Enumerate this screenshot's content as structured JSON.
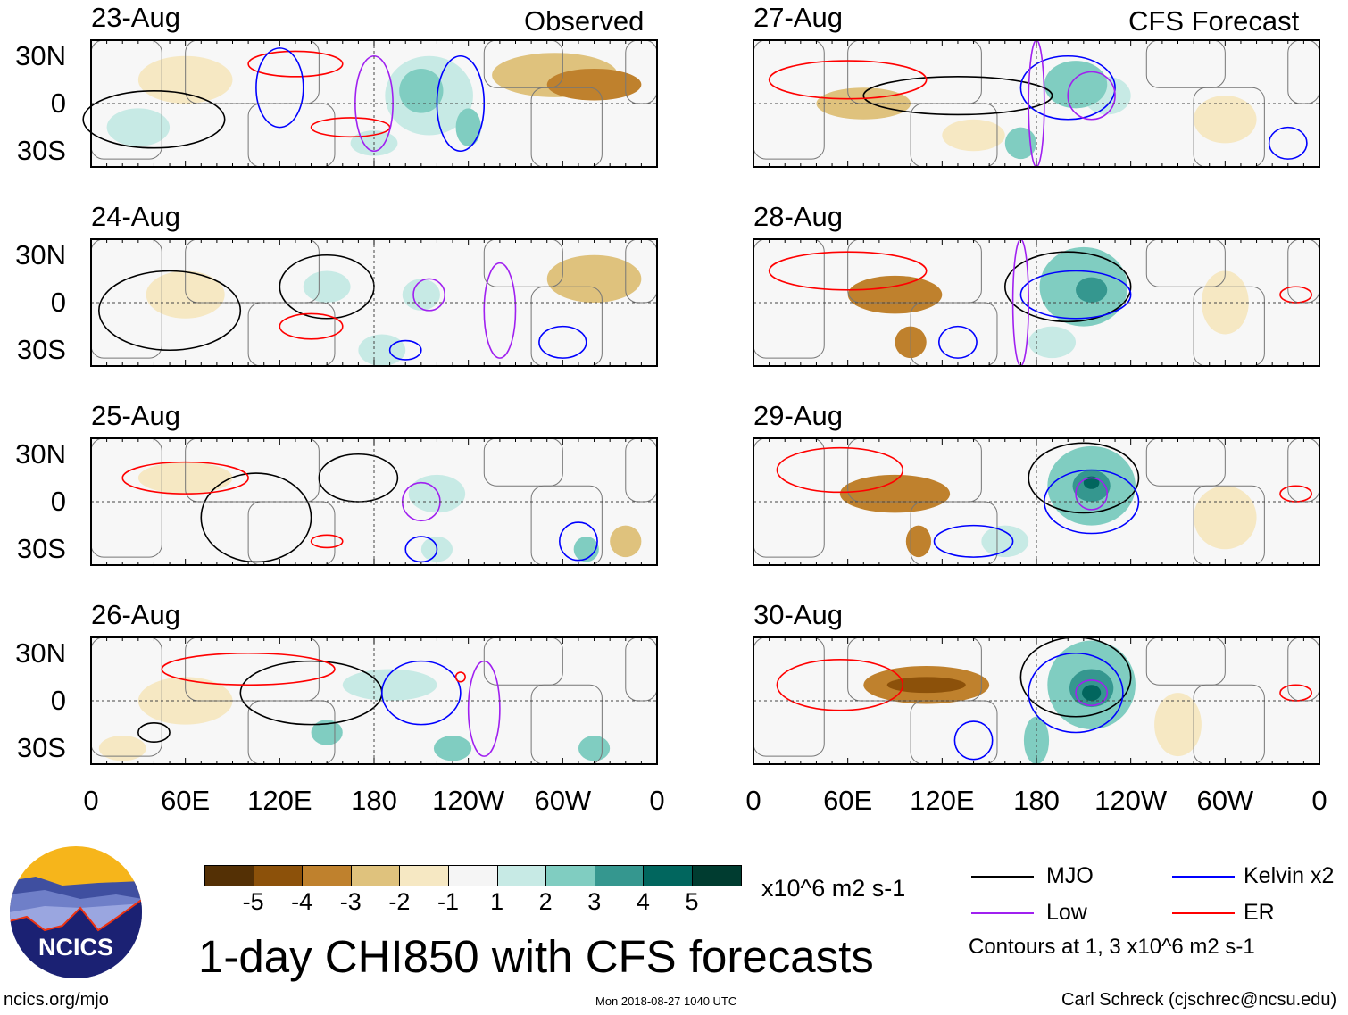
{
  "header": {
    "left_label": "Observed",
    "right_label": "CFS Forecast"
  },
  "lat_labels": [
    "30N",
    "0",
    "30S"
  ],
  "lon_labels": [
    "0",
    "60E",
    "120E",
    "180",
    "120W",
    "60W",
    "0"
  ],
  "panels": [
    {
      "date": "23-Aug",
      "column": "observed",
      "fill": [
        [
          320,
          12,
          30,
          10,
          -3
        ],
        [
          295,
          18,
          40,
          14,
          -2
        ],
        [
          210,
          8,
          14,
          14,
          3
        ],
        [
          240,
          -15,
          8,
          12,
          3
        ],
        [
          215,
          5,
          28,
          25,
          1.5
        ],
        [
          30,
          -15,
          20,
          12,
          1.5
        ],
        [
          180,
          -25,
          15,
          8,
          1.5
        ],
        [
          60,
          15,
          30,
          15,
          -1.5
        ]
      ],
      "contours": [
        [
          "mjo",
          40,
          -10,
          45,
          18
        ],
        [
          "er",
          130,
          25,
          30,
          8
        ],
        [
          "er",
          165,
          -15,
          25,
          6
        ],
        [
          "kelvin",
          235,
          0,
          15,
          30
        ],
        [
          "low",
          180,
          0,
          12,
          30
        ],
        [
          "kelvin",
          120,
          10,
          15,
          25
        ]
      ]
    },
    {
      "date": "24-Aug",
      "column": "observed",
      "fill": [
        [
          320,
          15,
          30,
          15,
          -2.5
        ],
        [
          210,
          5,
          12,
          10,
          2
        ],
        [
          185,
          -30,
          15,
          10,
          1.5
        ],
        [
          60,
          5,
          25,
          15,
          -1.5
        ],
        [
          150,
          10,
          15,
          10,
          1.5
        ]
      ],
      "contours": [
        [
          "mjo",
          50,
          -5,
          45,
          25
        ],
        [
          "mjo",
          150,
          10,
          30,
          20
        ],
        [
          "er",
          140,
          -15,
          20,
          8
        ],
        [
          "low",
          215,
          5,
          10,
          10
        ],
        [
          "kelvin",
          200,
          -30,
          10,
          6
        ],
        [
          "low",
          260,
          -5,
          10,
          30
        ],
        [
          "kelvin",
          300,
          -25,
          15,
          10
        ]
      ]
    },
    {
      "date": "25-Aug",
      "column": "observed",
      "fill": [
        [
          220,
          5,
          18,
          12,
          1.5
        ],
        [
          315,
          -30,
          8,
          8,
          3
        ],
        [
          220,
          -30,
          10,
          8,
          2
        ],
        [
          60,
          15,
          30,
          10,
          -1.5
        ],
        [
          340,
          -25,
          10,
          10,
          -2
        ]
      ],
      "contours": [
        [
          "mjo",
          105,
          -10,
          35,
          28
        ],
        [
          "mjo",
          170,
          15,
          25,
          15
        ],
        [
          "low",
          210,
          0,
          12,
          12
        ],
        [
          "kelvin",
          210,
          -30,
          10,
          8
        ],
        [
          "kelvin",
          310,
          -25,
          12,
          12
        ],
        [
          "er",
          60,
          15,
          40,
          10
        ],
        [
          "er",
          150,
          -25,
          10,
          4
        ]
      ]
    },
    {
      "date": "26-Aug",
      "column": "observed",
      "fill": [
        [
          190,
          10,
          30,
          10,
          2
        ],
        [
          150,
          -20,
          10,
          8,
          3
        ],
        [
          230,
          -30,
          12,
          8,
          3
        ],
        [
          320,
          -30,
          10,
          8,
          3
        ],
        [
          60,
          0,
          30,
          15,
          -1.5
        ],
        [
          20,
          -30,
          15,
          8,
          -1.5
        ]
      ],
      "contours": [
        [
          "mjo",
          140,
          5,
          45,
          20
        ],
        [
          "mjo",
          40,
          -20,
          10,
          6
        ],
        [
          "kelvin",
          210,
          5,
          25,
          20
        ],
        [
          "low",
          250,
          -5,
          10,
          30
        ],
        [
          "er",
          100,
          20,
          55,
          10
        ],
        [
          "er",
          235,
          15,
          3,
          3
        ]
      ]
    },
    {
      "date": "27-Aug",
      "column": "forecast",
      "fill": [
        [
          205,
          12,
          20,
          15,
          3
        ],
        [
          225,
          5,
          15,
          12,
          2
        ],
        [
          70,
          0,
          30,
          10,
          -2.5
        ],
        [
          140,
          -20,
          20,
          10,
          -1.5
        ],
        [
          170,
          -25,
          10,
          10,
          3
        ],
        [
          300,
          -10,
          20,
          15,
          -1.5
        ]
      ],
      "contours": [
        [
          "mjo",
          130,
          5,
          60,
          12
        ],
        [
          "er",
          60,
          15,
          50,
          12
        ],
        [
          "kelvin",
          200,
          10,
          30,
          20
        ],
        [
          "low",
          215,
          5,
          15,
          15
        ],
        [
          "low",
          180,
          0,
          5,
          40
        ],
        [
          "kelvin",
          340,
          -25,
          12,
          10
        ]
      ]
    },
    {
      "date": "28-Aug",
      "column": "forecast",
      "fill": [
        [
          210,
          10,
          28,
          25,
          3
        ],
        [
          215,
          8,
          10,
          8,
          4
        ],
        [
          90,
          5,
          30,
          12,
          -3
        ],
        [
          100,
          -25,
          10,
          10,
          -3
        ],
        [
          190,
          -25,
          15,
          10,
          2
        ],
        [
          300,
          0,
          15,
          20,
          -1.5
        ]
      ],
      "contours": [
        [
          "mjo",
          200,
          10,
          40,
          22
        ],
        [
          "er",
          60,
          20,
          50,
          12
        ],
        [
          "kelvin",
          205,
          5,
          35,
          15
        ],
        [
          "kelvin",
          130,
          -25,
          12,
          10
        ],
        [
          "low",
          170,
          0,
          5,
          40
        ],
        [
          "er",
          345,
          5,
          10,
          5
        ]
      ]
    },
    {
      "date": "29-Aug",
      "column": "forecast",
      "fill": [
        [
          215,
          10,
          28,
          25,
          3
        ],
        [
          215,
          10,
          12,
          10,
          4
        ],
        [
          215,
          12,
          5,
          4,
          5
        ],
        [
          90,
          5,
          35,
          12,
          -3
        ],
        [
          105,
          -25,
          8,
          10,
          -3
        ],
        [
          160,
          -25,
          15,
          10,
          2
        ],
        [
          300,
          -10,
          20,
          20,
          -1.5
        ]
      ],
      "contours": [
        [
          "mjo",
          210,
          15,
          35,
          22
        ],
        [
          "er",
          55,
          20,
          40,
          14
        ],
        [
          "kelvin",
          215,
          0,
          30,
          20
        ],
        [
          "low",
          215,
          5,
          10,
          10
        ],
        [
          "kelvin",
          140,
          -25,
          25,
          10
        ],
        [
          "er",
          345,
          5,
          10,
          5
        ]
      ]
    },
    {
      "date": "30-Aug",
      "column": "forecast",
      "fill": [
        [
          215,
          10,
          28,
          28,
          3
        ],
        [
          215,
          8,
          14,
          12,
          4
        ],
        [
          215,
          5,
          6,
          5,
          5
        ],
        [
          110,
          10,
          40,
          12,
          -3
        ],
        [
          110,
          10,
          25,
          5,
          -4
        ],
        [
          180,
          -25,
          8,
          15,
          3
        ],
        [
          270,
          -15,
          15,
          20,
          -1.5
        ]
      ],
      "contours": [
        [
          "mjo",
          205,
          15,
          35,
          25
        ],
        [
          "er",
          55,
          10,
          40,
          16
        ],
        [
          "kelvin",
          205,
          5,
          30,
          25
        ],
        [
          "low",
          215,
          5,
          10,
          8
        ],
        [
          "kelvin",
          140,
          -25,
          12,
          12
        ],
        [
          "er",
          345,
          5,
          10,
          5
        ]
      ]
    }
  ],
  "colorbar": {
    "colors": [
      "#543005",
      "#8c510a",
      "#bf812d",
      "#dfc27d",
      "#f6e8c3",
      "#f5f5f5",
      "#c7eae5",
      "#80cdc1",
      "#35978f",
      "#01665e",
      "#003c30"
    ],
    "labels": [
      "-5",
      "-4",
      "-3",
      "-2",
      "-1",
      "1",
      "2",
      "3",
      "4",
      "5"
    ],
    "units": "x10^6 m2 s-1"
  },
  "legend": {
    "items": [
      {
        "label": "MJO",
        "color": "#000000"
      },
      {
        "label": "Kelvin x2",
        "color": "#0000ff"
      },
      {
        "label": "Low",
        "color": "#a020f0"
      },
      {
        "label": "ER",
        "color": "#ff0000"
      }
    ],
    "note": "Contours at 1, 3 x10^6 m2 s-1"
  },
  "title": "1-day CHI850 with CFS forecasts",
  "logo": {
    "text": "NCICS"
  },
  "footer": {
    "url": "ncics.org/mjo",
    "timestamp": "Mon 2018-08-27 1040 UTC",
    "credit": "Carl Schreck (cjschrec@ncsu.edu)"
  }
}
